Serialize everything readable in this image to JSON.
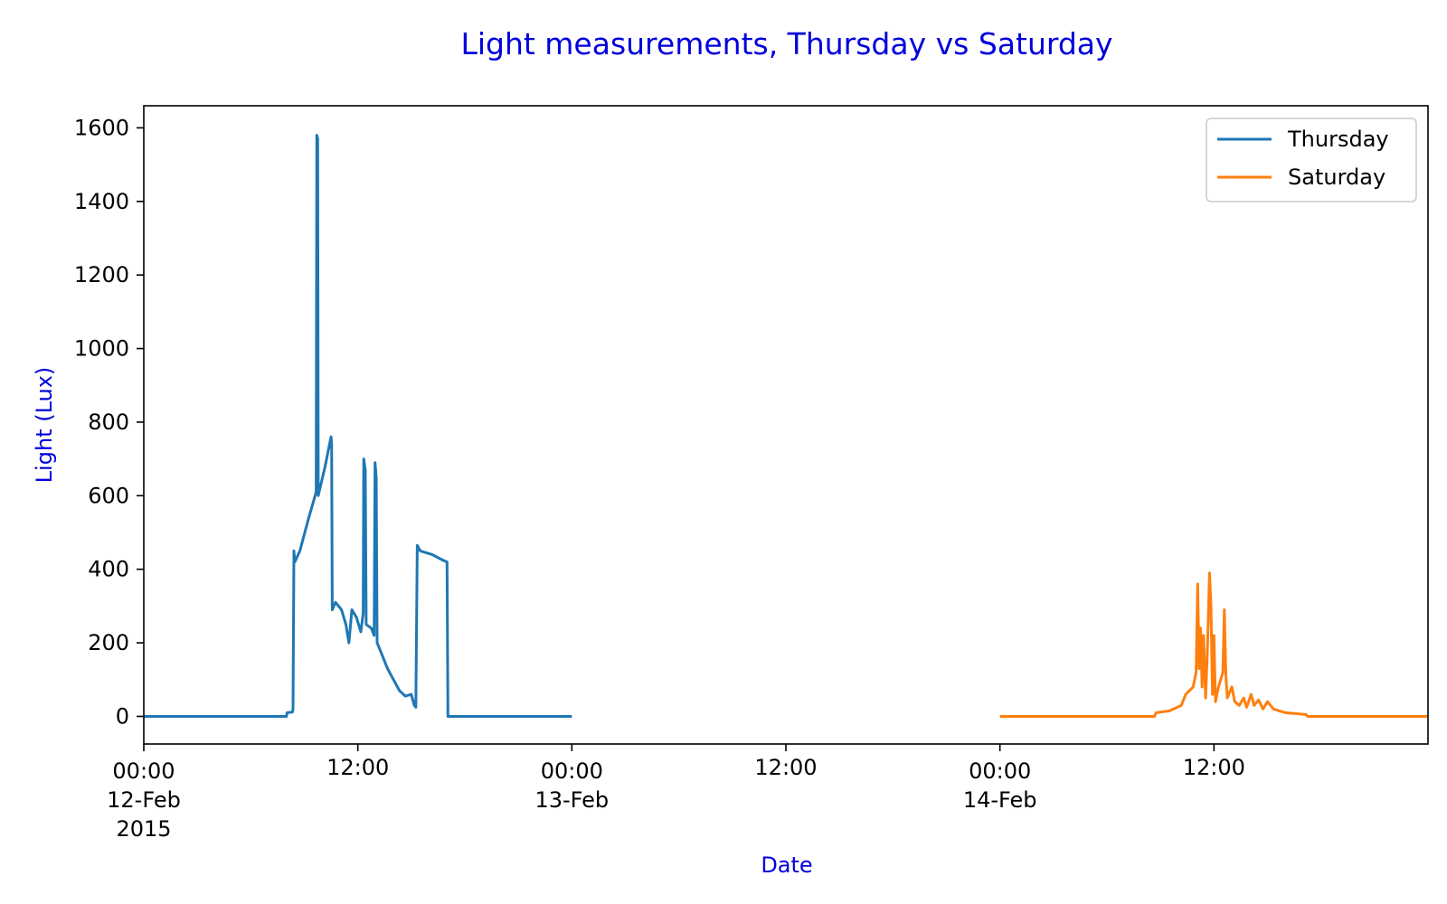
{
  "chart_data": {
    "type": "line",
    "title": "Light measurements, Thursday vs Saturday",
    "xlabel": "Date",
    "ylabel": "Light (Lux)",
    "title_color": "#0000dd",
    "xlim": [
      "2015-02-12 00:00",
      "2015-02-15 00:00"
    ],
    "ylim": [
      -75,
      1660
    ],
    "y_ticks": [
      0,
      200,
      400,
      600,
      800,
      1000,
      1200,
      1400,
      1600
    ],
    "x_ticks": [
      {
        "x": "2015-02-12 00:00",
        "lines": [
          "00:00",
          "12-Feb",
          "2015"
        ]
      },
      {
        "x": "2015-02-12 12:00",
        "lines": [
          "12:00"
        ]
      },
      {
        "x": "2015-02-13 00:00",
        "lines": [
          "00:00",
          "13-Feb"
        ]
      },
      {
        "x": "2015-02-13 12:00",
        "lines": [
          "12:00"
        ]
      },
      {
        "x": "2015-02-14 00:00",
        "lines": [
          "00:00",
          "14-Feb"
        ]
      },
      {
        "x": "2015-02-14 12:00",
        "lines": [
          "12:00"
        ]
      }
    ],
    "grid": false,
    "legend_position": "top-right",
    "series": [
      {
        "name": "Thursday",
        "color": "#1f77b4",
        "points": [
          [
            "2015-02-12 00:00",
            0
          ],
          [
            "2015-02-12 08:00",
            0
          ],
          [
            "2015-02-12 08:02",
            10
          ],
          [
            "2015-02-12 08:20",
            12
          ],
          [
            "2015-02-12 08:22",
            20
          ],
          [
            "2015-02-12 08:25",
            450
          ],
          [
            "2015-02-12 08:28",
            420
          ],
          [
            "2015-02-12 08:45",
            450
          ],
          [
            "2015-02-12 09:15",
            540
          ],
          [
            "2015-02-12 09:40",
            610
          ],
          [
            "2015-02-12 09:42",
            1580
          ],
          [
            "2015-02-12 09:45",
            1570
          ],
          [
            "2015-02-12 09:47",
            600
          ],
          [
            "2015-02-12 10:10",
            680
          ],
          [
            "2015-02-12 10:25",
            740
          ],
          [
            "2015-02-12 10:30",
            760
          ],
          [
            "2015-02-12 10:32",
            740
          ],
          [
            "2015-02-12 10:34",
            290
          ],
          [
            "2015-02-12 10:45",
            310
          ],
          [
            "2015-02-12 11:05",
            290
          ],
          [
            "2015-02-12 11:20",
            250
          ],
          [
            "2015-02-12 11:30",
            200
          ],
          [
            "2015-02-12 11:40",
            290
          ],
          [
            "2015-02-12 11:55",
            270
          ],
          [
            "2015-02-12 12:10",
            230
          ],
          [
            "2015-02-12 12:18",
            280
          ],
          [
            "2015-02-12 12:20",
            700
          ],
          [
            "2015-02-12 12:25",
            670
          ],
          [
            "2015-02-12 12:28",
            250
          ],
          [
            "2015-02-12 12:45",
            240
          ],
          [
            "2015-02-12 12:55",
            220
          ],
          [
            "2015-02-12 12:58",
            690
          ],
          [
            "2015-02-12 13:02",
            650
          ],
          [
            "2015-02-12 13:05",
            200
          ],
          [
            "2015-02-12 13:20",
            170
          ],
          [
            "2015-02-12 13:40",
            130
          ],
          [
            "2015-02-12 14:00",
            100
          ],
          [
            "2015-02-12 14:20",
            70
          ],
          [
            "2015-02-12 14:40",
            55
          ],
          [
            "2015-02-12 15:00",
            60
          ],
          [
            "2015-02-12 15:10",
            30
          ],
          [
            "2015-02-12 15:15",
            25
          ],
          [
            "2015-02-12 15:20",
            465
          ],
          [
            "2015-02-12 15:30",
            450
          ],
          [
            "2015-02-12 16:10",
            440
          ],
          [
            "2015-02-12 16:45",
            425
          ],
          [
            "2015-02-12 17:00",
            420
          ],
          [
            "2015-02-12 17:03",
            0
          ],
          [
            "2015-02-13 00:00",
            0
          ]
        ]
      },
      {
        "name": "Saturday",
        "color": "#ff7f0e",
        "points": [
          [
            "2015-02-14 00:00",
            0
          ],
          [
            "2015-02-14 08:40",
            0
          ],
          [
            "2015-02-14 08:45",
            10
          ],
          [
            "2015-02-14 09:30",
            15
          ],
          [
            "2015-02-14 10:10",
            30
          ],
          [
            "2015-02-14 10:25",
            60
          ],
          [
            "2015-02-14 10:50",
            80
          ],
          [
            "2015-02-14 11:00",
            120
          ],
          [
            "2015-02-14 11:05",
            360
          ],
          [
            "2015-02-14 11:10",
            130
          ],
          [
            "2015-02-14 11:15",
            240
          ],
          [
            "2015-02-14 11:20",
            80
          ],
          [
            "2015-02-14 11:25",
            220
          ],
          [
            "2015-02-14 11:32",
            50
          ],
          [
            "2015-02-14 11:38",
            180
          ],
          [
            "2015-02-14 11:45",
            390
          ],
          [
            "2015-02-14 11:50",
            300
          ],
          [
            "2015-02-14 11:55",
            60
          ],
          [
            "2015-02-14 12:00",
            220
          ],
          [
            "2015-02-14 12:05",
            40
          ],
          [
            "2015-02-14 12:15",
            80
          ],
          [
            "2015-02-14 12:30",
            120
          ],
          [
            "2015-02-14 12:35",
            290
          ],
          [
            "2015-02-14 12:40",
            110
          ],
          [
            "2015-02-14 12:45",
            50
          ],
          [
            "2015-02-14 13:00",
            80
          ],
          [
            "2015-02-14 13:10",
            40
          ],
          [
            "2015-02-14 13:25",
            30
          ],
          [
            "2015-02-14 13:40",
            50
          ],
          [
            "2015-02-14 13:50",
            25
          ],
          [
            "2015-02-14 14:05",
            60
          ],
          [
            "2015-02-14 14:15",
            30
          ],
          [
            "2015-02-14 14:30",
            45
          ],
          [
            "2015-02-14 14:45",
            20
          ],
          [
            "2015-02-14 15:00",
            40
          ],
          [
            "2015-02-14 15:20",
            20
          ],
          [
            "2015-02-14 16:00",
            10
          ],
          [
            "2015-02-14 17:10",
            5
          ],
          [
            "2015-02-14 17:15",
            0
          ],
          [
            "2015-02-15 00:00",
            0
          ]
        ]
      }
    ]
  }
}
